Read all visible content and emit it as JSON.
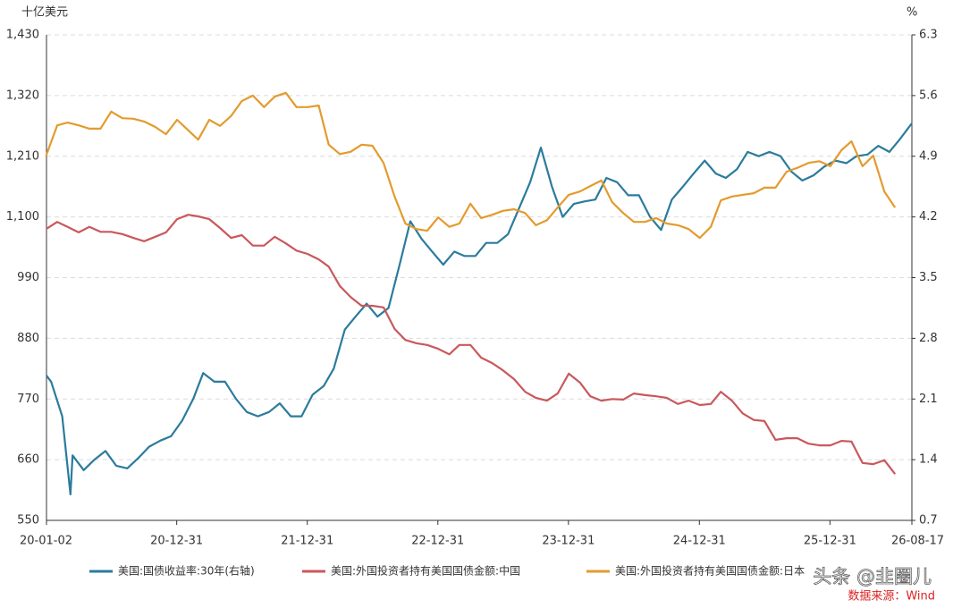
{
  "chart_data": {
    "type": "line",
    "y_label": "十亿美元",
    "y2_label": "%",
    "annotations": [
      "头条 @韭圈儿",
      "数据来源：Wind"
    ],
    "xlim": [
      "2020-01-02",
      "2026-08-17"
    ],
    "xticks": [
      {
        "value": "2020-01-02",
        "label": "20-01-02"
      },
      {
        "value": "2020-12-31",
        "label": "20-12-31"
      },
      {
        "value": "2021-12-31",
        "label": "21-12-31"
      },
      {
        "value": "2022-12-31",
        "label": "22-12-31"
      },
      {
        "value": "2023-12-31",
        "label": "23-12-31"
      },
      {
        "value": "2024-12-31",
        "label": "24-12-31"
      },
      {
        "value": "2025-12-31",
        "label": "25-12-31"
      },
      {
        "value": "2026-08-17",
        "label": "26-08-17"
      }
    ],
    "ylim": [
      550,
      1430
    ],
    "yticks": [
      550,
      660,
      770,
      880,
      990,
      {
        "value": 1100,
        "label": "1,100"
      },
      {
        "value": 1210,
        "label": "1,210"
      },
      {
        "value": 1320,
        "label": "1,320"
      },
      {
        "value": 1430,
        "label": "1,430"
      }
    ],
    "y2lim": [
      0.7,
      6.3
    ],
    "y2ticks": [
      0.7,
      1.4,
      2.1,
      2.8,
      3.5,
      4.2,
      4.9,
      5.6,
      6.3
    ],
    "grid": true,
    "x": [
      "2020-01",
      "2020-02",
      "2020-03",
      "2020-04",
      "2020-05",
      "2020-06",
      "2020-07",
      "2020-08",
      "2020-09",
      "2020-10",
      "2020-11",
      "2020-12",
      "2021-01",
      "2021-02",
      "2021-03",
      "2021-04",
      "2021-05",
      "2021-06",
      "2021-07",
      "2021-08",
      "2021-09",
      "2021-10",
      "2021-11",
      "2021-12",
      "2022-01",
      "2022-02",
      "2022-03",
      "2022-04",
      "2022-05",
      "2022-06",
      "2022-07",
      "2022-08",
      "2022-09",
      "2022-10",
      "2022-11",
      "2022-12",
      "2023-01",
      "2023-02",
      "2023-03",
      "2023-04",
      "2023-05",
      "2023-06",
      "2023-07",
      "2023-08",
      "2023-09",
      "2023-10",
      "2023-11",
      "2023-12",
      "2024-01",
      "2024-02",
      "2024-03",
      "2024-04",
      "2024-05",
      "2024-06",
      "2024-07",
      "2024-08",
      "2024-09",
      "2024-10",
      "2024-11",
      "2024-12",
      "2025-01",
      "2025-02",
      "2025-03",
      "2025-04",
      "2025-05",
      "2025-06",
      "2025-07",
      "2025-08",
      "2025-09",
      "2025-10",
      "2025-11",
      "2025-12",
      "2026-01",
      "2026-02",
      "2026-03",
      "2026-04",
      "2026-05",
      "2026-06",
      "2026-07"
    ],
    "series": [
      {
        "name": "美国:国债收益率:30年(右轴)",
        "color": "#2b7b9c",
        "axis": "y2",
        "x": [
          "2020-01-02",
          "2020-01-15",
          "2020-02-15",
          "2020-03-09",
          "2020-03-15",
          "2020-04-15",
          "2020-05-15",
          "2020-06-15",
          "2020-07-15",
          "2020-08-15",
          "2020-09-15",
          "2020-10-15",
          "2020-11-15",
          "2020-12-15",
          "2021-01-15",
          "2021-02-15",
          "2021-03-15",
          "2021-04-15",
          "2021-05-15",
          "2021-06-15",
          "2021-07-15",
          "2021-08-15",
          "2021-09-15",
          "2021-10-15",
          "2021-11-15",
          "2021-12-15",
          "2022-01-15",
          "2022-02-15",
          "2022-03-15",
          "2022-04-15",
          "2022-05-15",
          "2022-06-15",
          "2022-07-15",
          "2022-08-15",
          "2022-09-15",
          "2022-10-15",
          "2022-11-15",
          "2022-12-15",
          "2023-01-15",
          "2023-02-15",
          "2023-03-15",
          "2023-04-15",
          "2023-05-15",
          "2023-06-15",
          "2023-07-15",
          "2023-08-15",
          "2023-09-15",
          "2023-10-15",
          "2023-11-15",
          "2023-12-15",
          "2024-01-15",
          "2024-02-15",
          "2024-03-15",
          "2024-04-15",
          "2024-05-15",
          "2024-06-15",
          "2024-07-15",
          "2024-08-15",
          "2024-09-15",
          "2024-10-15",
          "2024-11-15",
          "2024-12-15",
          "2025-01-15",
          "2025-02-15",
          "2025-03-15",
          "2025-04-15",
          "2025-05-15",
          "2025-06-15",
          "2025-07-15",
          "2025-08-15",
          "2025-09-15",
          "2025-10-15",
          "2025-11-15",
          "2025-12-15",
          "2026-01-15",
          "2026-02-15",
          "2026-03-15",
          "2026-04-15",
          "2026-05-15",
          "2026-06-15",
          "2026-07-15",
          "2026-08-17"
        ],
        "values": [
          2.37,
          2.3,
          1.9,
          1.0,
          1.45,
          1.28,
          1.4,
          1.5,
          1.33,
          1.3,
          1.42,
          1.55,
          1.62,
          1.67,
          1.85,
          2.1,
          2.4,
          2.3,
          2.3,
          2.1,
          1.95,
          1.9,
          1.95,
          2.05,
          1.9,
          1.9,
          2.15,
          2.25,
          2.45,
          2.9,
          3.05,
          3.2,
          3.05,
          3.15,
          3.65,
          4.15,
          3.95,
          3.8,
          3.65,
          3.8,
          3.75,
          3.75,
          3.9,
          3.9,
          4.0,
          4.3,
          4.6,
          5.0,
          4.55,
          4.2,
          4.35,
          4.38,
          4.4,
          4.65,
          4.6,
          4.45,
          4.45,
          4.2,
          4.05,
          4.4,
          4.55,
          4.7,
          4.85,
          4.7,
          4.65,
          4.75,
          4.95,
          4.9,
          4.95,
          4.9,
          4.72,
          4.62,
          4.68,
          4.78,
          4.85,
          4.82,
          4.9,
          4.92,
          5.02,
          4.95,
          5.1,
          5.28
        ]
      },
      {
        "name": "美国:外国投资者持有美国国债金额:中国",
        "color": "#c9585c",
        "values": [
          1078,
          1091,
          1082,
          1072,
          1082,
          1073,
          1073,
          1069,
          1062,
          1056,
          1064,
          1072,
          1096,
          1104,
          1101,
          1096,
          1080,
          1062,
          1067,
          1048,
          1048,
          1064,
          1052,
          1039,
          1033,
          1023,
          1010,
          975,
          955,
          939,
          939,
          936,
          897,
          877,
          871,
          868,
          861,
          851,
          868,
          868,
          845,
          835,
          822,
          806,
          783,
          772,
          767,
          780,
          816,
          800,
          775,
          767,
          770,
          769,
          780,
          777,
          775,
          772,
          761,
          767,
          759,
          761,
          783,
          767,
          744,
          732,
          730,
          696,
          699,
          699,
          689,
          686,
          686,
          694,
          693,
          654,
          652,
          659,
          634
        ]
      },
      {
        "name": "美国:外国投资者持有美国国债金额:日本",
        "color": "#e39b2d",
        "values": [
          1211,
          1266,
          1271,
          1266,
          1260,
          1260,
          1291,
          1279,
          1278,
          1273,
          1263,
          1250,
          1276,
          1257,
          1240,
          1276,
          1265,
          1283,
          1310,
          1320,
          1299,
          1318,
          1325,
          1299,
          1299,
          1302,
          1231,
          1214,
          1218,
          1231,
          1229,
          1198,
          1137,
          1088,
          1078,
          1075,
          1099,
          1082,
          1088,
          1124,
          1098,
          1104,
          1111,
          1114,
          1107,
          1085,
          1094,
          1117,
          1140,
          1146,
          1156,
          1166,
          1127,
          1107,
          1091,
          1091,
          1098,
          1088,
          1085,
          1078,
          1062,
          1082,
          1130,
          1137,
          1140,
          1143,
          1153,
          1153,
          1182,
          1189,
          1198,
          1201,
          1192,
          1221,
          1237,
          1192,
          1211,
          1146,
          1117
        ]
      }
    ]
  }
}
